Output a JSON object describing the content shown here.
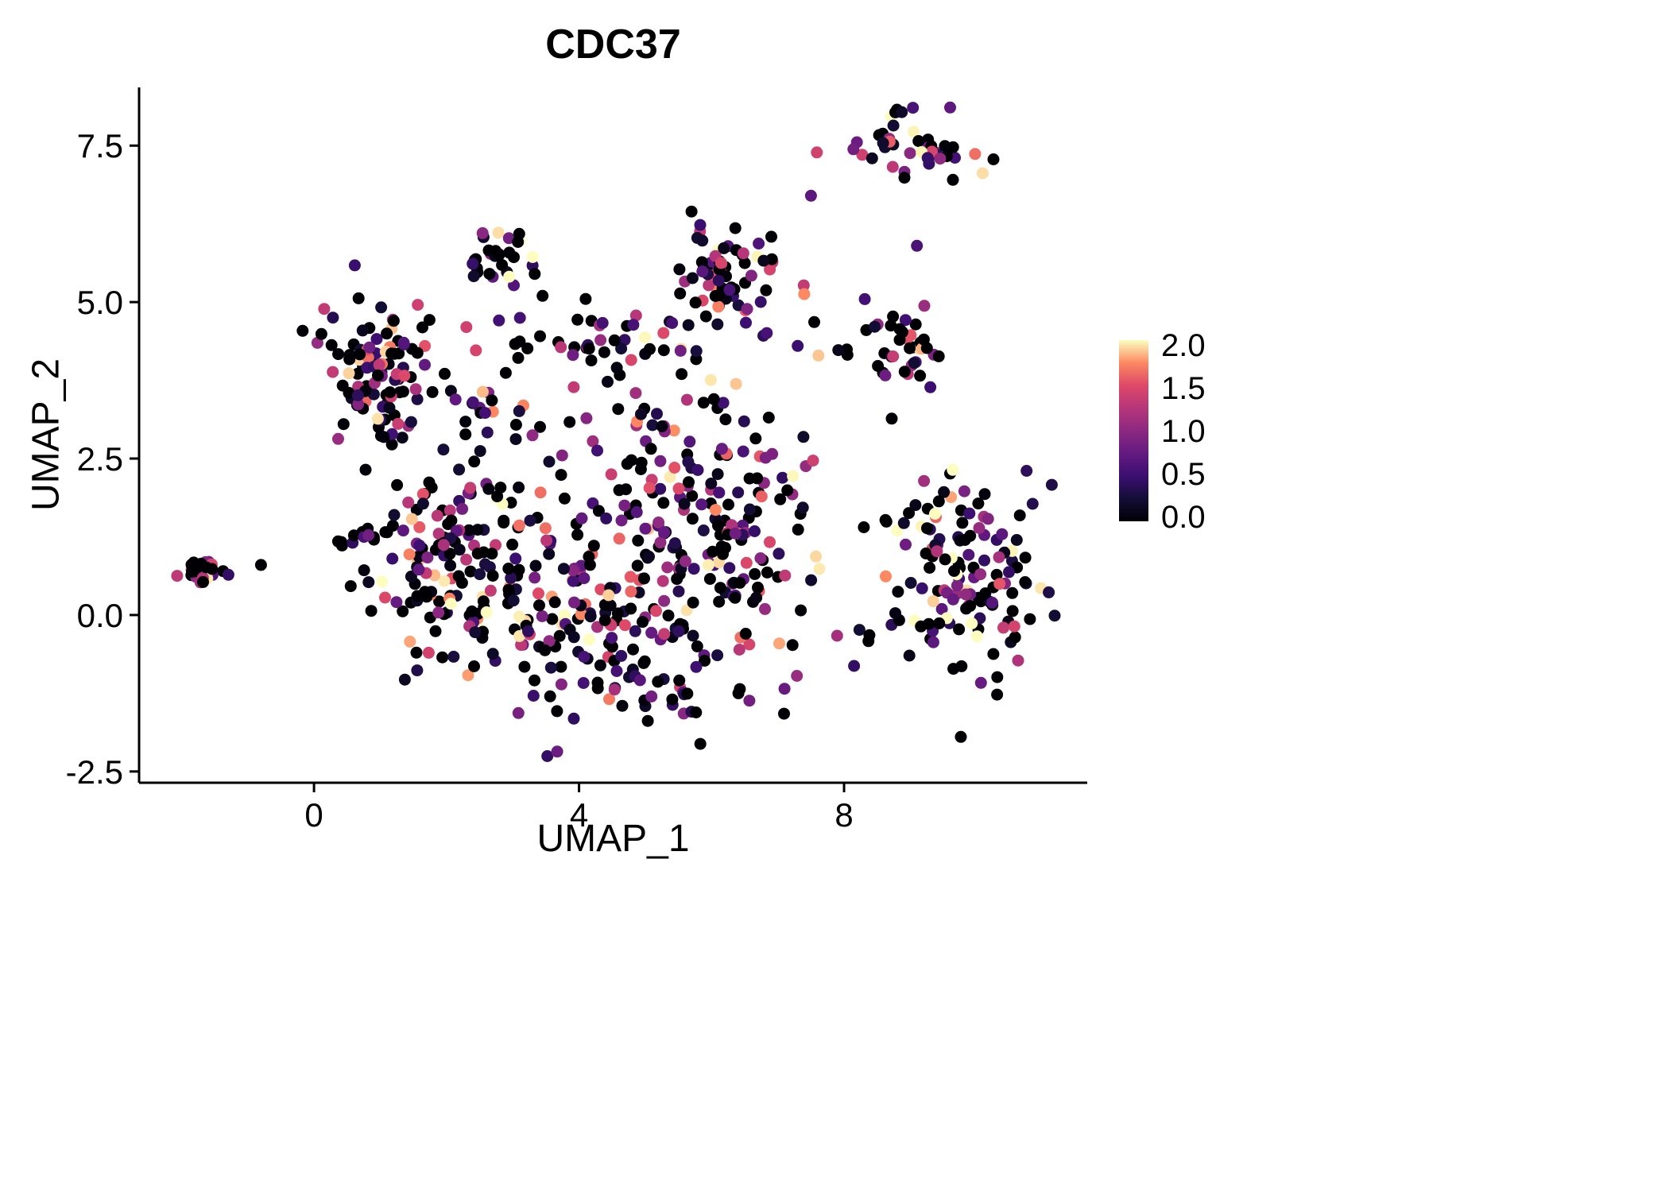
{
  "chart_data": {
    "type": "scatter",
    "title": "CDC37",
    "xlabel": "UMAP_1",
    "ylabel": "UMAP_2",
    "xlim": [
      -2.64,
      11.67
    ],
    "ylim": [
      -2.68,
      8.43
    ],
    "x_ticks": [
      {
        "v": 0,
        "label": "0"
      },
      {
        "v": 4,
        "label": "4"
      },
      {
        "v": 8,
        "label": "8"
      }
    ],
    "y_ticks": [
      {
        "v": 7.5,
        "label": "7.5"
      },
      {
        "v": 5.0,
        "label": "5.0"
      },
      {
        "v": 2.5,
        "label": "2.5"
      },
      {
        "v": 0.0,
        "label": "0.0"
      },
      {
        "v": -2.5,
        "label": "-2.5"
      }
    ],
    "legend": {
      "domain": [
        0,
        2
      ],
      "ticks": [
        {
          "v": 2.0,
          "label": "2.0"
        },
        {
          "v": 1.5,
          "label": "1.5"
        },
        {
          "v": 1.0,
          "label": "1.0"
        },
        {
          "v": 0.5,
          "label": "0.5"
        },
        {
          "v": 0.0,
          "label": "0.0"
        }
      ]
    },
    "colormap": [
      [
        0.0,
        "#000004"
      ],
      [
        0.125,
        "#140E36"
      ],
      [
        0.25,
        "#3B0F70"
      ],
      [
        0.375,
        "#641A80"
      ],
      [
        0.5,
        "#8C2981"
      ],
      [
        0.625,
        "#B63679"
      ],
      [
        0.75,
        "#DE4968"
      ],
      [
        0.875,
        "#FC8961"
      ],
      [
        1.0,
        "#FCFDBF"
      ]
    ],
    "point_radius": 7.5,
    "seed": 7,
    "value_mix": {
      "p_zero": 0.32,
      "shape": 1.7,
      "scale": 2.1
    },
    "clusters": [
      {
        "n": 28,
        "cx": -1.65,
        "cy": 0.65,
        "sx": 0.13,
        "sy": 0.1,
        "p0": 0.45
      },
      {
        "n": 105,
        "cx": 1.0,
        "cy": 3.9,
        "sx": 0.45,
        "sy": 0.55
      },
      {
        "n": 14,
        "cx": 0.65,
        "cy": 1.3,
        "sx": 0.28,
        "sy": 0.12,
        "p0": 0.5
      },
      {
        "n": 120,
        "cx": 2.0,
        "cy": 1.0,
        "sx": 0.55,
        "sy": 0.9
      },
      {
        "n": 280,
        "cx": 4.6,
        "cy": 0.1,
        "sx": 1.15,
        "sy": 1.0
      },
      {
        "n": 90,
        "cx": 6.3,
        "cy": 1.6,
        "sx": 0.6,
        "sy": 0.75
      },
      {
        "n": 45,
        "cx": 4.3,
        "cy": 4.35,
        "sx": 1.15,
        "sy": 0.22
      },
      {
        "n": 40,
        "cx": 5.0,
        "cy": 2.9,
        "sx": 1.0,
        "sy": 0.45
      },
      {
        "n": 18,
        "cx": 2.6,
        "cy": 3.2,
        "sx": 0.35,
        "sy": 0.3
      },
      {
        "n": 30,
        "cx": 2.75,
        "cy": 5.8,
        "sx": 0.28,
        "sy": 0.28,
        "vscale": 1.25
      },
      {
        "n": 70,
        "cx": 6.25,
        "cy": 5.4,
        "sx": 0.4,
        "sy": 0.45
      },
      {
        "n": 45,
        "cx": 9.0,
        "cy": 7.5,
        "sx": 0.48,
        "sy": 0.26
      },
      {
        "n": 40,
        "cx": 8.8,
        "cy": 4.35,
        "sx": 0.4,
        "sy": 0.35
      },
      {
        "n": 140,
        "cx": 9.8,
        "cy": 0.55,
        "sx": 0.65,
        "sy": 0.85,
        "vscale": 1.1
      }
    ],
    "singletons": [
      [
        -0.8,
        0.8,
        0
      ],
      [
        4.1,
        5.05,
        0
      ],
      [
        3.45,
        5.1,
        0
      ],
      [
        7.5,
        6.7,
        0.7
      ],
      [
        9.1,
        5.9,
        0.6
      ],
      [
        7.55,
        4.68,
        0
      ],
      [
        7.3,
        4.3,
        0.5
      ],
      [
        2.3,
        4.6,
        1.4
      ]
    ]
  },
  "style": {
    "background": "#FFFFFF",
    "axis_color": "#000000",
    "tick_label_color": "#000000",
    "title_color": "#000000"
  }
}
